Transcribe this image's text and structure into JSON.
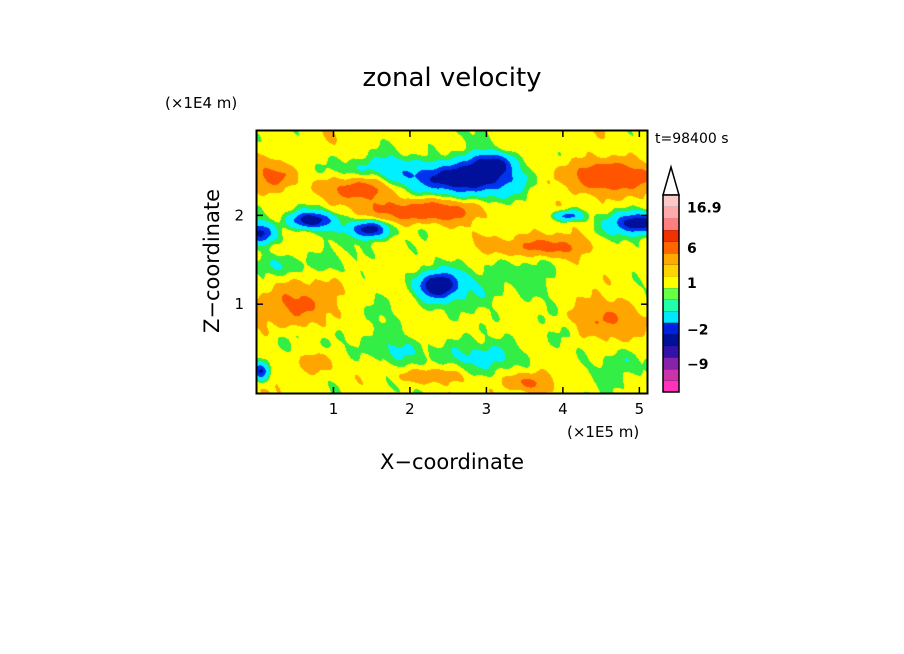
{
  "chart_data": {
    "type": "heatmap",
    "title": "zonal velocity",
    "xlabel": "X−coordinate",
    "ylabel": "Z−coordinate",
    "x_scale_label": "(×1E5 m)",
    "y_scale_label": "(×1E4 m)",
    "time_label": "t=98400 s",
    "xlim": [
      0,
      5.1
    ],
    "ylim": [
      0,
      2.95
    ],
    "x_ticks": [
      1,
      2,
      3,
      4,
      5
    ],
    "y_ticks": [
      1,
      2
    ],
    "colorbar": {
      "labels": [
        {
          "value": 16.9,
          "text": "16.9"
        },
        {
          "value": 6,
          "text": "6"
        },
        {
          "value": 1,
          "text": "1"
        },
        {
          "value": -2,
          "text": "−2"
        },
        {
          "value": -9,
          "text": "−9"
        }
      ],
      "levels": [
        {
          "color": "#ff33bb"
        },
        {
          "color": "#cc33aa"
        },
        {
          "color": "#8822aa"
        },
        {
          "color": "#3311aa"
        },
        {
          "color": "#001199"
        },
        {
          "color": "#0022dd"
        },
        {
          "color": "#00e8ff"
        },
        {
          "color": "#22ffaa"
        },
        {
          "color": "#66ff44"
        },
        {
          "color": "#ffff00"
        },
        {
          "color": "#ffd400"
        },
        {
          "color": "#ffaa00"
        },
        {
          "color": "#ff6600"
        },
        {
          "color": "#ee3300"
        },
        {
          "color": "#ff7f7f"
        },
        {
          "color": "#ffaaaa"
        },
        {
          "color": "#ffc8c8"
        }
      ]
    },
    "field_colors": {
      "strong_negative": "#00109a",
      "negative": "#0033ee",
      "weak_negative": "#00f0ff",
      "near_zero": "#33ee44",
      "weak_positive": "#ffff00",
      "positive": "#ffa500",
      "strong_positive": "#ff5500"
    },
    "features": [
      {
        "kind": "jet_negative",
        "x": 2.65,
        "z": 2.42,
        "rx": 0.72,
        "rz": 0.17,
        "strength": 1.0
      },
      {
        "kind": "jet_negative",
        "x": 3.05,
        "z": 2.6,
        "rx": 0.3,
        "rz": 0.12,
        "strength": 0.7
      },
      {
        "kind": "jet_negative",
        "x": 0.7,
        "z": 1.95,
        "rx": 0.3,
        "rz": 0.1,
        "strength": 0.9
      },
      {
        "kind": "jet_negative",
        "x": 1.45,
        "z": 1.85,
        "rx": 0.25,
        "rz": 0.1,
        "strength": 0.85
      },
      {
        "kind": "jet_negative",
        "x": 0.05,
        "z": 1.8,
        "rx": 0.18,
        "rz": 0.12,
        "strength": 0.8
      },
      {
        "kind": "jet_negative",
        "x": 4.95,
        "z": 1.92,
        "rx": 0.3,
        "rz": 0.12,
        "strength": 0.9
      },
      {
        "kind": "jet_negative",
        "x": 2.35,
        "z": 1.22,
        "rx": 0.25,
        "rz": 0.14,
        "strength": 0.95
      },
      {
        "kind": "jet_negative",
        "x": 4.05,
        "z": 2.0,
        "rx": 0.2,
        "rz": 0.06,
        "strength": 0.6
      },
      {
        "kind": "jet_negative",
        "x": 0.05,
        "z": 0.25,
        "rx": 0.1,
        "rz": 0.1,
        "strength": 0.7
      },
      {
        "kind": "jet_positive",
        "x": 4.55,
        "z": 2.45,
        "rx": 0.6,
        "rz": 0.17,
        "strength": 1.0
      },
      {
        "kind": "jet_positive",
        "x": 2.2,
        "z": 2.05,
        "rx": 0.65,
        "rz": 0.13,
        "strength": 0.95
      },
      {
        "kind": "jet_positive",
        "x": 1.3,
        "z": 2.3,
        "rx": 0.55,
        "rz": 0.13,
        "strength": 0.7
      },
      {
        "kind": "jet_positive",
        "x": 0.25,
        "z": 2.45,
        "rx": 0.3,
        "rz": 0.15,
        "strength": 0.6
      },
      {
        "kind": "jet_positive",
        "x": 3.75,
        "z": 1.65,
        "rx": 0.6,
        "rz": 0.12,
        "strength": 0.7
      },
      {
        "kind": "jet_positive",
        "x": 0.45,
        "z": 1.0,
        "rx": 0.5,
        "rz": 0.25,
        "strength": 0.55
      },
      {
        "kind": "jet_positive",
        "x": 4.6,
        "z": 0.85,
        "rx": 0.5,
        "rz": 0.2,
        "strength": 0.55
      },
      {
        "kind": "jet_positive",
        "x": 2.2,
        "z": 0.2,
        "rx": 0.35,
        "rz": 0.1,
        "strength": 0.5
      },
      {
        "kind": "jet_positive",
        "x": 3.5,
        "z": 0.12,
        "rx": 0.3,
        "rz": 0.1,
        "strength": 0.5
      },
      {
        "kind": "jet_positive",
        "x": 0.7,
        "z": 0.35,
        "rx": 0.2,
        "rz": 0.12,
        "strength": 0.5
      },
      {
        "kind": "band_negative",
        "x": 3.0,
        "z": 1.2,
        "rx": 0.9,
        "rz": 0.35,
        "strength": 0.3
      },
      {
        "kind": "band_negative",
        "x": 1.8,
        "z": 0.5,
        "rx": 0.8,
        "rz": 0.18,
        "strength": 0.4
      },
      {
        "kind": "band_negative",
        "x": 3.0,
        "z": 0.4,
        "rx": 0.6,
        "rz": 0.15,
        "strength": 0.4
      },
      {
        "kind": "band_negative",
        "x": 1.5,
        "z": 2.55,
        "rx": 0.6,
        "rz": 0.12,
        "strength": 0.4
      },
      {
        "kind": "band_negative",
        "x": 0.5,
        "z": 1.45,
        "rx": 0.5,
        "rz": 0.12,
        "strength": 0.35
      },
      {
        "kind": "band_negative",
        "x": 4.75,
        "z": 0.35,
        "rx": 0.35,
        "rz": 0.18,
        "strength": 0.45
      }
    ]
  }
}
